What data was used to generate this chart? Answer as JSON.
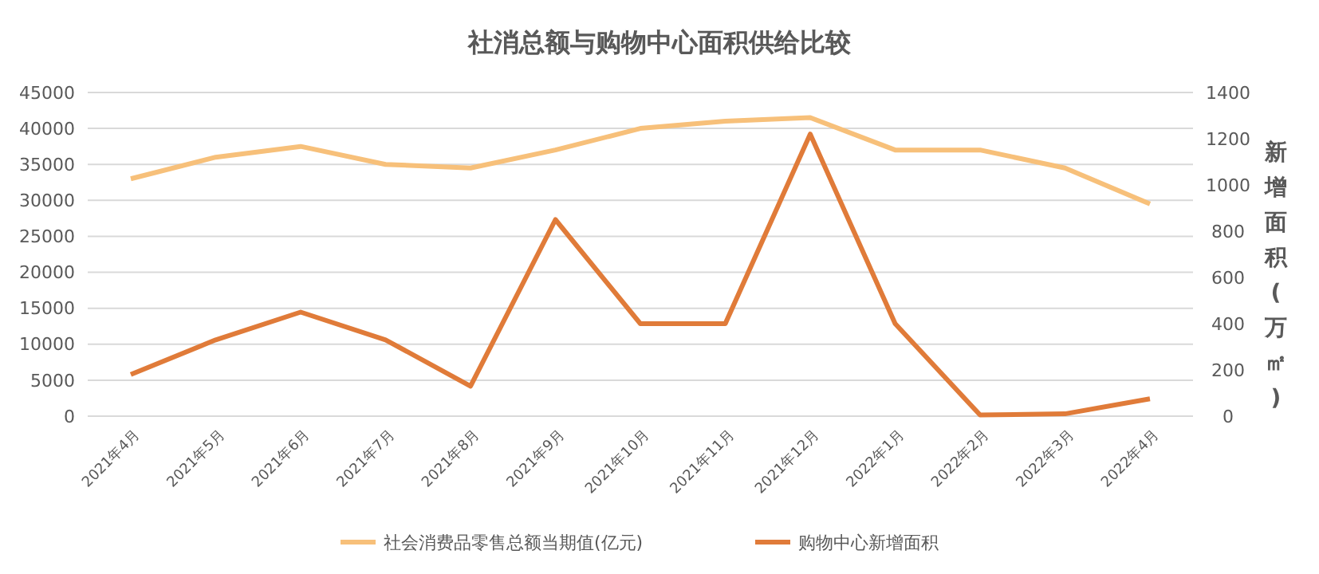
{
  "chart_data": {
    "type": "line",
    "title": "社消总额与购物中心面积供给比较",
    "y2label": "新增面积(万㎡)",
    "categories": [
      "2021年4月",
      "2021年5月",
      "2021年6月",
      "2021年7月",
      "2021年8月",
      "2021年9月",
      "2021年10月",
      "2021年11月",
      "2021年12月",
      "2022年1月",
      "2022年2月",
      "2022年3月",
      "2022年4月"
    ],
    "series": [
      {
        "name": "社会消费品零售总额当期值(亿元)",
        "color": "#f7c07a",
        "values": [
          33000,
          36000,
          37500,
          35000,
          34500,
          37000,
          40000,
          41000,
          41500,
          37000,
          37000,
          34500,
          29500
        ]
      },
      {
        "name": "购物中心新增面积",
        "color": "#e07b39",
        "axis": "y2",
        "values": [
          180,
          330,
          450,
          330,
          130,
          850,
          400,
          400,
          1220,
          400,
          5,
          10,
          75
        ]
      }
    ],
    "ylim": [
      0,
      45000
    ],
    "yticks": [
      0,
      5000,
      10000,
      15000,
      20000,
      25000,
      30000,
      35000,
      40000,
      45000
    ],
    "y2lim": [
      0,
      1400
    ],
    "y2ticks": [
      0,
      200,
      400,
      600,
      800,
      1000,
      1200,
      1400
    ],
    "grid": "y",
    "legend": "bottom",
    "marker": "none",
    "line_style": "solid"
  }
}
